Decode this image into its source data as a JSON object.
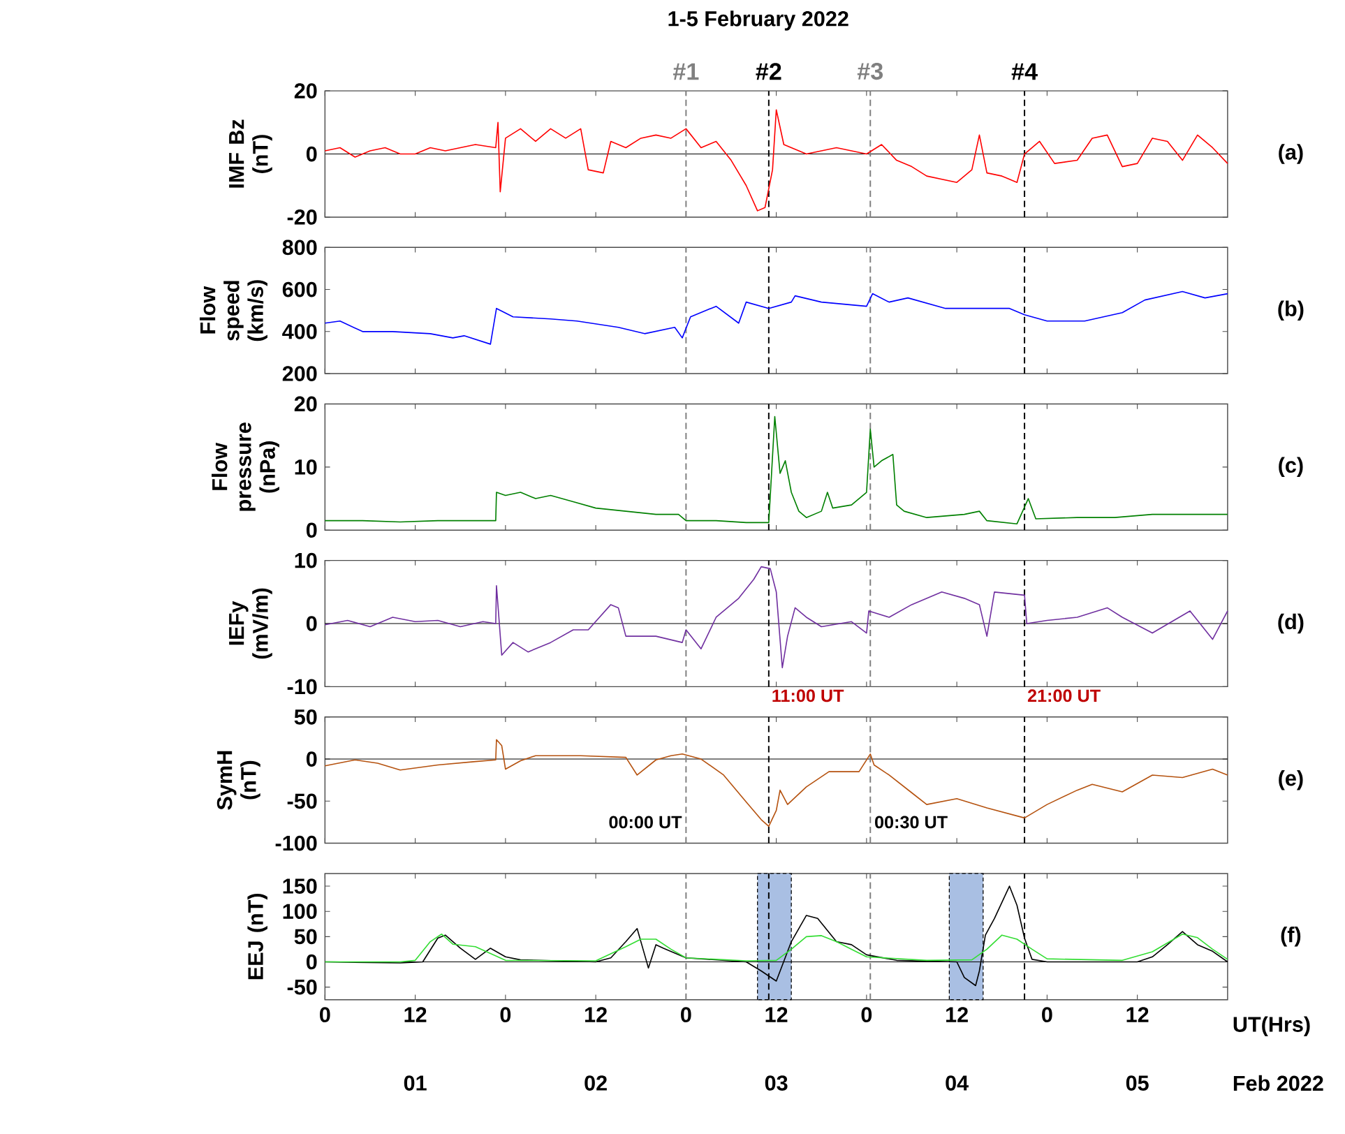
{
  "chart_data": [
    {
      "type": "line",
      "title": "1-5 February 2022",
      "ylabel": "IMF Bz (nT)",
      "xlim": [
        "2022-02-01T00:00",
        "2022-02-06T00:00"
      ],
      "ylim": [
        -20,
        20
      ],
      "yticks": [
        -20,
        0,
        20
      ],
      "xticks": [
        {
          "value": "2022-02-01T00:00",
          "label": null
        },
        {
          "value": "2022-02-01T12:00",
          "label": null
        },
        {
          "value": "2022-02-02T00:00",
          "label": null
        },
        {
          "value": "2022-02-02T12:00",
          "label": null
        },
        {
          "value": "2022-02-03T00:00",
          "label": null
        },
        {
          "value": "2022-02-03T12:00",
          "label": null
        },
        {
          "value": "2022-02-04T00:00",
          "label": null
        },
        {
          "value": "2022-02-04T12:00",
          "label": null
        },
        {
          "value": "2022-02-05T00:00",
          "label": null
        },
        {
          "value": "2022-02-05T12:00",
          "label": null
        }
      ],
      "tick_labels": "y",
      "series": [
        {
          "color": "#ff0000",
          "x": [
            "2022-02-01T00:00",
            "2022-02-01T02:00",
            "2022-02-01T04:00",
            "2022-02-01T06:00",
            "2022-02-01T08:00",
            "2022-02-01T10:00",
            "2022-02-01T12:00",
            "2022-02-01T14:00",
            "2022-02-01T16:00",
            "2022-02-01T18:00",
            "2022-02-01T20:00",
            "2022-02-01T22:42",
            "2022-02-01T23:00",
            "2022-02-01T23:18",
            "2022-02-02T00:00",
            "2022-02-02T02:00",
            "2022-02-02T04:00",
            "2022-02-02T06:00",
            "2022-02-02T08:00",
            "2022-02-02T10:00",
            "2022-02-02T11:00",
            "2022-02-02T13:00",
            "2022-02-02T14:00",
            "2022-02-02T16:00",
            "2022-02-02T18:00",
            "2022-02-02T20:00",
            "2022-02-02T22:00",
            "2022-02-03T00:00",
            "2022-02-03T02:00",
            "2022-02-03T04:00",
            "2022-02-03T06:00",
            "2022-02-03T08:00",
            "2022-02-03T09:30",
            "2022-02-03T10:30",
            "2022-02-03T11:30",
            "2022-02-03T12:00",
            "2022-02-03T13:00",
            "2022-02-03T16:00",
            "2022-02-03T20:00",
            "2022-02-04T00:00",
            "2022-02-04T02:00",
            "2022-02-04T04:00",
            "2022-02-04T06:00",
            "2022-02-04T08:00",
            "2022-02-04T10:00",
            "2022-02-04T12:00",
            "2022-02-04T14:00",
            "2022-02-04T15:00",
            "2022-02-04T16:00",
            "2022-02-04T18:00",
            "2022-02-04T20:00",
            "2022-02-04T21:00",
            "2022-02-04T23:00",
            "2022-02-05T01:00",
            "2022-02-05T04:00",
            "2022-02-05T06:00",
            "2022-02-05T08:00",
            "2022-02-05T10:00",
            "2022-02-05T12:00",
            "2022-02-05T14:00",
            "2022-02-05T16:00",
            "2022-02-05T18:00",
            "2022-02-05T20:00",
            "2022-02-05T22:00",
            "2022-02-06T00:00"
          ],
          "values": [
            1,
            2,
            -1,
            1,
            2,
            0,
            0,
            2,
            1,
            2,
            3,
            2,
            10,
            -12,
            5,
            8,
            4,
            8,
            5,
            8,
            -5,
            -6,
            4,
            2,
            5,
            6,
            5,
            8,
            2,
            4,
            -2,
            -10,
            -18,
            -17,
            -5,
            14,
            3,
            0,
            2,
            0,
            3,
            -2,
            -4,
            -7,
            -8,
            -9,
            -5,
            6,
            -6,
            -7,
            -9,
            0,
            4,
            -3,
            -2,
            5,
            6,
            -4,
            -3,
            5,
            4,
            -2,
            6,
            2,
            -3
          ]
        }
      ],
      "ref_lines": [
        {
          "axis": "y",
          "value": 0,
          "color": "#000000",
          "line_style": "solid"
        },
        {
          "axis": "x",
          "value": "2022-02-03T00:00",
          "label": "#1",
          "color": "#808080",
          "line_style": "dashed"
        },
        {
          "axis": "x",
          "value": "2022-02-03T11:00",
          "label": "#2",
          "color": "#000000",
          "line_style": "dashed"
        },
        {
          "axis": "x",
          "value": "2022-02-04T00:30",
          "label": "#3",
          "color": "#808080",
          "line_style": "dashed"
        },
        {
          "axis": "x",
          "value": "2022-02-04T21:00",
          "label": "#4",
          "color": "#000000",
          "line_style": "dashed"
        }
      ],
      "annotations": [
        "(a)"
      ]
    },
    {
      "type": "line",
      "ylabel": "Flow speed (km/s)",
      "xlim": [
        "2022-02-01T00:00",
        "2022-02-06T00:00"
      ],
      "ylim": [
        200,
        800
      ],
      "yticks": [
        200,
        400,
        600,
        800
      ],
      "xticks": [
        {
          "value": "2022-02-01T00:00",
          "label": null
        },
        {
          "value": "2022-02-01T12:00",
          "label": null
        },
        {
          "value": "2022-02-02T00:00",
          "label": null
        },
        {
          "value": "2022-02-02T12:00",
          "label": null
        },
        {
          "value": "2022-02-03T00:00",
          "label": null
        },
        {
          "value": "2022-02-03T12:00",
          "label": null
        },
        {
          "value": "2022-02-04T00:00",
          "label": null
        },
        {
          "value": "2022-02-04T12:00",
          "label": null
        },
        {
          "value": "2022-02-05T00:00",
          "label": null
        },
        {
          "value": "2022-02-05T12:00",
          "label": null
        }
      ],
      "tick_labels": "y",
      "series": [
        {
          "color": "#0000ff",
          "x": [
            "2022-02-01T00:00",
            "2022-02-01T02:00",
            "2022-02-01T05:00",
            "2022-02-01T09:00",
            "2022-02-01T14:00",
            "2022-02-01T17:00",
            "2022-02-01T18:30",
            "2022-02-01T22:00",
            "2022-02-01T22:48",
            "2022-02-02T01:00",
            "2022-02-02T06:00",
            "2022-02-02T09:30",
            "2022-02-02T15:00",
            "2022-02-02T18:30",
            "2022-02-02T22:30",
            "2022-02-02T23:30",
            "2022-02-03T00:36",
            "2022-02-03T04:00",
            "2022-02-03T07:00",
            "2022-02-03T08:00",
            "2022-02-03T11:00",
            "2022-02-03T14:00",
            "2022-02-03T14:30",
            "2022-02-03T18:00",
            "2022-02-04T00:00",
            "2022-02-04T00:48",
            "2022-02-04T03:00",
            "2022-02-04T05:30",
            "2022-02-04T10:30",
            "2022-02-04T14:30",
            "2022-02-04T19:00",
            "2022-02-04T21:00",
            "2022-02-05T00:00",
            "2022-02-05T05:00",
            "2022-02-05T10:00",
            "2022-02-05T13:00",
            "2022-02-05T18:00",
            "2022-02-05T21:00",
            "2022-02-06T00:00"
          ],
          "values": [
            440,
            450,
            400,
            400,
            390,
            370,
            380,
            340,
            510,
            470,
            460,
            450,
            420,
            390,
            420,
            370,
            470,
            520,
            440,
            540,
            510,
            540,
            570,
            540,
            520,
            580,
            540,
            560,
            510,
            510,
            510,
            480,
            450,
            450,
            490,
            550,
            590,
            560,
            580
          ]
        }
      ],
      "ref_lines": [
        {
          "axis": "x",
          "value": "2022-02-03T00:00",
          "color": "#808080",
          "line_style": "dashed"
        },
        {
          "axis": "x",
          "value": "2022-02-03T11:00",
          "color": "#000000",
          "line_style": "dashed"
        },
        {
          "axis": "x",
          "value": "2022-02-04T00:30",
          "color": "#808080",
          "line_style": "dashed"
        },
        {
          "axis": "x",
          "value": "2022-02-04T21:00",
          "color": "#000000",
          "line_style": "dashed"
        }
      ],
      "annotations": [
        "(b)"
      ]
    },
    {
      "type": "line",
      "ylabel": "Flow pressure (nPa)",
      "xlim": [
        "2022-02-01T00:00",
        "2022-02-06T00:00"
      ],
      "ylim": [
        0,
        20
      ],
      "yticks": [
        0,
        10,
        20
      ],
      "xticks": [
        {
          "value": "2022-02-01T00:00",
          "label": null
        },
        {
          "value": "2022-02-01T12:00",
          "label": null
        },
        {
          "value": "2022-02-02T00:00",
          "label": null
        },
        {
          "value": "2022-02-02T12:00",
          "label": null
        },
        {
          "value": "2022-02-03T00:00",
          "label": null
        },
        {
          "value": "2022-02-03T12:00",
          "label": null
        },
        {
          "value": "2022-02-04T00:00",
          "label": null
        },
        {
          "value": "2022-02-04T12:00",
          "label": null
        },
        {
          "value": "2022-02-05T00:00",
          "label": null
        },
        {
          "value": "2022-02-05T12:00",
          "label": null
        }
      ],
      "tick_labels": "y",
      "series": [
        {
          "color": "#008000",
          "x": [
            "2022-02-01T00:00",
            "2022-02-01T05:00",
            "2022-02-01T10:00",
            "2022-02-01T15:00",
            "2022-02-01T20:00",
            "2022-02-01T22:42",
            "2022-02-01T22:48",
            "2022-02-02T00:00",
            "2022-02-02T02:00",
            "2022-02-02T04:00",
            "2022-02-02T06:00",
            "2022-02-02T09:00",
            "2022-02-02T12:00",
            "2022-02-02T16:00",
            "2022-02-02T20:00",
            "2022-02-02T23:00",
            "2022-02-03T00:00",
            "2022-02-03T04:00",
            "2022-02-03T08:00",
            "2022-02-03T11:00",
            "2022-02-03T11:48",
            "2022-02-03T12:30",
            "2022-02-03T13:12",
            "2022-02-03T14:00",
            "2022-02-03T15:00",
            "2022-02-03T16:00",
            "2022-02-03T18:00",
            "2022-02-03T18:48",
            "2022-02-03T19:30",
            "2022-02-03T22:00",
            "2022-02-04T00:00",
            "2022-02-04T00:30",
            "2022-02-04T01:00",
            "2022-02-04T02:00",
            "2022-02-04T03:30",
            "2022-02-04T04:00",
            "2022-02-04T05:00",
            "2022-02-04T08:00",
            "2022-02-04T13:00",
            "2022-02-04T15:00",
            "2022-02-04T16:00",
            "2022-02-04T20:00",
            "2022-02-04T21:30",
            "2022-02-04T22:30",
            "2022-02-05T04:00",
            "2022-02-05T09:00",
            "2022-02-05T14:00",
            "2022-02-05T19:00",
            "2022-02-06T00:00"
          ],
          "values": [
            1.5,
            1.5,
            1.3,
            1.5,
            1.5,
            1.5,
            6,
            5.5,
            6,
            5,
            5.5,
            4.5,
            3.5,
            3,
            2.5,
            2.5,
            1.5,
            1.5,
            1.2,
            1.2,
            18,
            9,
            11,
            6,
            3,
            2,
            3,
            6,
            3.5,
            4,
            6,
            16,
            10,
            11,
            12,
            4,
            3,
            2,
            2.5,
            3,
            1.5,
            1,
            5,
            1.8,
            2,
            2,
            2.5,
            2.5,
            2.5
          ]
        }
      ],
      "ref_lines": [
        {
          "axis": "x",
          "value": "2022-02-03T00:00",
          "color": "#808080",
          "line_style": "dashed"
        },
        {
          "axis": "x",
          "value": "2022-02-03T11:00",
          "color": "#000000",
          "line_style": "dashed"
        },
        {
          "axis": "x",
          "value": "2022-02-04T00:30",
          "color": "#808080",
          "line_style": "dashed"
        },
        {
          "axis": "x",
          "value": "2022-02-04T21:00",
          "color": "#000000",
          "line_style": "dashed"
        }
      ],
      "annotations": [
        "(c)"
      ]
    },
    {
      "type": "line",
      "ylabel": "IEFy (mV/m)",
      "xlim": [
        "2022-02-01T00:00",
        "2022-02-06T00:00"
      ],
      "ylim": [
        -10,
        10
      ],
      "yticks": [
        -10,
        0,
        10
      ],
      "xticks": [
        {
          "value": "2022-02-01T00:00",
          "label": null
        },
        {
          "value": "2022-02-01T12:00",
          "label": null
        },
        {
          "value": "2022-02-02T00:00",
          "label": null
        },
        {
          "value": "2022-02-02T12:00",
          "label": null
        },
        {
          "value": "2022-02-03T00:00",
          "label": null
        },
        {
          "value": "2022-02-03T12:00",
          "label": null
        },
        {
          "value": "2022-02-04T00:00",
          "label": null
        },
        {
          "value": "2022-02-04T12:00",
          "label": null
        },
        {
          "value": "2022-02-05T00:00",
          "label": null
        },
        {
          "value": "2022-02-05T12:00",
          "label": null
        }
      ],
      "tick_labels": "y",
      "series": [
        {
          "color": "#7030a0",
          "x": [
            "2022-02-01T00:00",
            "2022-02-01T03:00",
            "2022-02-01T06:00",
            "2022-02-01T09:00",
            "2022-02-01T12:00",
            "2022-02-01T15:00",
            "2022-02-01T18:00",
            "2022-02-01T21:00",
            "2022-02-01T22:42",
            "2022-02-01T22:48",
            "2022-02-01T23:30",
            "2022-02-02T01:00",
            "2022-02-02T03:00",
            "2022-02-02T06:00",
            "2022-02-02T09:00",
            "2022-02-02T11:00",
            "2022-02-02T14:00",
            "2022-02-02T15:00",
            "2022-02-02T16:00",
            "2022-02-02T20:00",
            "2022-02-02T23:30",
            "2022-02-03T00:00",
            "2022-02-03T02:00",
            "2022-02-03T04:00",
            "2022-02-03T07:00",
            "2022-02-03T09:00",
            "2022-02-03T10:00",
            "2022-02-03T11:12",
            "2022-02-03T12:00",
            "2022-02-03T12:48",
            "2022-02-03T13:30",
            "2022-02-03T14:30",
            "2022-02-03T16:00",
            "2022-02-03T18:00",
            "2022-02-03T22:00",
            "2022-02-04T00:00",
            "2022-02-04T00:18",
            "2022-02-04T03:00",
            "2022-02-04T06:00",
            "2022-02-04T10:00",
            "2022-02-04T13:00",
            "2022-02-04T15:00",
            "2022-02-04T16:00",
            "2022-02-04T17:00",
            "2022-02-04T21:00",
            "2022-02-04T21:18",
            "2022-02-05T00:00",
            "2022-02-05T04:00",
            "2022-02-05T08:00",
            "2022-02-05T10:00",
            "2022-02-05T14:00",
            "2022-02-05T19:00",
            "2022-02-05T22:00",
            "2022-02-06T00:00"
          ],
          "values": [
            -0.2,
            0.5,
            -0.5,
            1,
            0.3,
            0.5,
            -0.5,
            0.3,
            0,
            6,
            -5,
            -3,
            -4.5,
            -3,
            -1,
            -1,
            3,
            2.5,
            -2,
            -2,
            -3,
            -1,
            -4,
            1,
            4,
            7,
            9,
            8.7,
            5,
            -7,
            -2,
            2.5,
            1,
            -0.5,
            0.3,
            -1.5,
            2,
            1,
            3,
            5,
            4,
            3,
            -2,
            5,
            4.5,
            0,
            0.5,
            1,
            2.5,
            1,
            -1.5,
            2,
            -2.5,
            2
          ]
        }
      ],
      "ref_lines": [
        {
          "axis": "y",
          "value": 0,
          "color": "#000000",
          "line_style": "solid"
        },
        {
          "axis": "x",
          "value": "2022-02-03T00:00",
          "color": "#808080",
          "line_style": "dashed"
        },
        {
          "axis": "x",
          "value": "2022-02-03T11:00",
          "color": "#000000",
          "line_style": "dashed"
        },
        {
          "axis": "x",
          "value": "2022-02-04T00:30",
          "color": "#808080",
          "line_style": "dashed"
        },
        {
          "axis": "x",
          "value": "2022-02-04T21:00",
          "color": "#000000",
          "line_style": "dashed"
        }
      ],
      "annotations": [
        "(d)",
        {
          "text": "11:00 UT",
          "x": "2022-02-03T11:00",
          "y": -10
        },
        {
          "text": "21:00 UT",
          "x": "2022-02-04T21:00",
          "y": -10
        }
      ]
    },
    {
      "type": "line",
      "ylabel": "SymH (nT)",
      "xlim": [
        "2022-02-01T00:00",
        "2022-02-06T00:00"
      ],
      "ylim": [
        -100,
        50
      ],
      "yticks": [
        -100,
        -50,
        0,
        50
      ],
      "xticks": [
        {
          "value": "2022-02-01T00:00",
          "label": null
        },
        {
          "value": "2022-02-01T12:00",
          "label": null
        },
        {
          "value": "2022-02-02T00:00",
          "label": null
        },
        {
          "value": "2022-02-02T12:00",
          "label": null
        },
        {
          "value": "2022-02-03T00:00",
          "label": null
        },
        {
          "value": "2022-02-03T12:00",
          "label": null
        },
        {
          "value": "2022-02-04T00:00",
          "label": null
        },
        {
          "value": "2022-02-04T12:00",
          "label": null
        },
        {
          "value": "2022-02-05T00:00",
          "label": null
        },
        {
          "value": "2022-02-05T12:00",
          "label": null
        }
      ],
      "tick_labels": "y",
      "series": [
        {
          "color": "#b5520f",
          "x": [
            "2022-02-01T00:00",
            "2022-02-01T04:00",
            "2022-02-01T07:00",
            "2022-02-01T10:00",
            "2022-02-01T15:00",
            "2022-02-01T20:00",
            "2022-02-01T22:42",
            "2022-02-01T22:48",
            "2022-02-01T23:30",
            "2022-02-02T00:00",
            "2022-02-02T02:00",
            "2022-02-02T04:00",
            "2022-02-02T10:00",
            "2022-02-02T16:00",
            "2022-02-02T17:30",
            "2022-02-02T20:00",
            "2022-02-02T22:00",
            "2022-02-02T23:30",
            "2022-02-03T02:00",
            "2022-02-03T05:00",
            "2022-02-03T08:00",
            "2022-02-03T10:00",
            "2022-02-03T11:00",
            "2022-02-03T12:00",
            "2022-02-03T12:30",
            "2022-02-03T13:30",
            "2022-02-03T16:00",
            "2022-02-03T19:00",
            "2022-02-03T23:00",
            "2022-02-04T00:30",
            "2022-02-04T01:00",
            "2022-02-04T03:00",
            "2022-02-04T06:00",
            "2022-02-04T08:00",
            "2022-02-04T12:00",
            "2022-02-04T16:00",
            "2022-02-04T21:00",
            "2022-02-05T00:00",
            "2022-02-05T04:00",
            "2022-02-05T06:00",
            "2022-02-05T10:00",
            "2022-02-05T14:00",
            "2022-02-05T18:00",
            "2022-02-05T22:00",
            "2022-02-06T00:00"
          ],
          "values": [
            -8,
            -1,
            -5,
            -13,
            -7,
            -3,
            -1,
            23,
            16,
            -12,
            -2,
            4,
            4,
            2,
            -19,
            -1,
            4,
            6,
            0,
            -19,
            -51,
            -72,
            -80,
            -61,
            -37,
            -54,
            -33,
            -15,
            -15,
            6,
            -7,
            -19,
            -40,
            -54,
            -47,
            -58,
            -70,
            -54,
            -37,
            -30,
            -39,
            -19,
            -22,
            -12,
            -19
          ]
        }
      ],
      "ref_lines": [
        {
          "axis": "y",
          "value": 0,
          "color": "#000000",
          "line_style": "solid"
        },
        {
          "axis": "x",
          "value": "2022-02-03T00:00",
          "color": "#808080",
          "line_style": "dashed"
        },
        {
          "axis": "x",
          "value": "2022-02-03T11:00",
          "color": "#000000",
          "line_style": "dashed"
        },
        {
          "axis": "x",
          "value": "2022-02-04T00:30",
          "color": "#808080",
          "line_style": "dashed"
        },
        {
          "axis": "x",
          "value": "2022-02-04T21:00",
          "color": "#000000",
          "line_style": "dashed"
        }
      ],
      "annotations": [
        "(e)",
        {
          "text": "00:00 UT",
          "x": "2022-02-03T00:00",
          "y": -75
        },
        {
          "text": "00:30 UT",
          "x": "2022-02-04T00:30",
          "y": -75
        }
      ]
    },
    {
      "type": "line",
      "ylabel": "EEJ (nT)",
      "xlabel": "UT(Hrs)",
      "xlim": [
        "2022-02-01T00:00",
        "2022-02-06T00:00"
      ],
      "ylim": [
        -75,
        175
      ],
      "yticks": [
        -50,
        0,
        50,
        100,
        150
      ],
      "xticks": [
        {
          "value": "2022-02-01T00:00",
          "label": "0"
        },
        {
          "value": "2022-02-01T12:00",
          "label": "12"
        },
        {
          "value": "2022-02-02T00:00",
          "label": "0"
        },
        {
          "value": "2022-02-02T12:00",
          "label": "12"
        },
        {
          "value": "2022-02-03T00:00",
          "label": "0"
        },
        {
          "value": "2022-02-03T12:00",
          "label": "12"
        },
        {
          "value": "2022-02-04T00:00",
          "label": "0"
        },
        {
          "value": "2022-02-04T12:00",
          "label": "12"
        },
        {
          "value": "2022-02-05T00:00",
          "label": "0"
        },
        {
          "value": "2022-02-05T12:00",
          "label": "12"
        }
      ],
      "series": [
        {
          "color": "#000000",
          "x": [
            "2022-02-01T00:00",
            "2022-02-01T10:00",
            "2022-02-01T13:00",
            "2022-02-01T15:00",
            "2022-02-01T16:00",
            "2022-02-01T18:00",
            "2022-02-01T20:00",
            "2022-02-01T22:00",
            "2022-02-02T00:00",
            "2022-02-02T02:00",
            "2022-02-02T12:00",
            "2022-02-02T14:00",
            "2022-02-02T16:00",
            "2022-02-02T17:30",
            "2022-02-02T18:30",
            "2022-02-02T19:00",
            "2022-02-02T20:00",
            "2022-02-02T21:00",
            "2022-02-03T00:00",
            "2022-02-03T08:00",
            "2022-02-03T10:00",
            "2022-02-03T12:00",
            "2022-02-03T13:00",
            "2022-02-03T14:00",
            "2022-02-03T16:00",
            "2022-02-03T17:30",
            "2022-02-03T20:00",
            "2022-02-03T22:00",
            "2022-02-04T00:00",
            "2022-02-04T04:00",
            "2022-02-04T12:00",
            "2022-02-04T13:00",
            "2022-02-04T14:30",
            "2022-02-04T15:00",
            "2022-02-04T15:48",
            "2022-02-04T17:00",
            "2022-02-04T19:00",
            "2022-02-04T20:00",
            "2022-02-04T21:00",
            "2022-02-04T22:00",
            "2022-02-05T00:00",
            "2022-02-05T12:00",
            "2022-02-05T14:00",
            "2022-02-05T16:00",
            "2022-02-05T18:00",
            "2022-02-05T20:00",
            "2022-02-05T22:00",
            "2022-02-06T00:00"
          ],
          "values": [
            0,
            -2,
            0,
            47,
            53,
            27,
            5,
            27,
            10,
            4,
            0,
            8,
            40,
            66,
            14,
            -12,
            34,
            27,
            8,
            0,
            -18,
            -38,
            1,
            40,
            92,
            86,
            40,
            34,
            14,
            3,
            0,
            -31,
            -47,
            -18,
            53,
            86,
            150,
            112,
            47,
            5,
            0,
            0,
            10,
            34,
            60,
            34,
            21,
            0
          ]
        },
        {
          "color": "#33dd33",
          "x": [
            "2022-02-01T00:00",
            "2022-02-01T10:00",
            "2022-02-01T12:00",
            "2022-02-01T14:00",
            "2022-02-01T15:30",
            "2022-02-01T17:00",
            "2022-02-01T20:00",
            "2022-02-02T00:00",
            "2022-02-02T12:00",
            "2022-02-02T16:00",
            "2022-02-02T18:00",
            "2022-02-02T20:00",
            "2022-02-02T22:00",
            "2022-02-03T00:00",
            "2022-02-03T08:00",
            "2022-02-03T12:00",
            "2022-02-03T14:00",
            "2022-02-03T16:00",
            "2022-02-03T18:00",
            "2022-02-03T20:00",
            "2022-02-03T22:00",
            "2022-02-04T00:00",
            "2022-02-04T08:00",
            "2022-02-04T14:00",
            "2022-02-04T16:00",
            "2022-02-04T18:00",
            "2022-02-04T20:00",
            "2022-02-04T22:00",
            "2022-02-05T00:00",
            "2022-02-05T10:00",
            "2022-02-05T14:00",
            "2022-02-05T18:00",
            "2022-02-05T20:00",
            "2022-02-05T22:00",
            "2022-02-06T00:00"
          ],
          "values": [
            0,
            0,
            3,
            40,
            55,
            35,
            30,
            3,
            2,
            30,
            45,
            45,
            25,
            8,
            2,
            3,
            25,
            50,
            52,
            40,
            25,
            10,
            3,
            4,
            25,
            53,
            45,
            25,
            6,
            3,
            20,
            55,
            48,
            25,
            5
          ]
        }
      ],
      "ref_lines": [
        {
          "axis": "y",
          "value": 0,
          "color": "#000000",
          "line_style": "solid"
        },
        {
          "axis": "x",
          "value": "2022-02-03T00:00",
          "color": "#808080",
          "line_style": "dashed"
        },
        {
          "axis": "x",
          "value": "2022-02-03T11:00",
          "color": "#000000",
          "line_style": "dashed"
        },
        {
          "axis": "x",
          "value": "2022-02-04T00:30",
          "color": "#808080",
          "line_style": "dashed"
        },
        {
          "axis": "x",
          "value": "2022-02-04T21:00",
          "color": "#000000",
          "line_style": "dashed"
        }
      ],
      "bands": [
        {
          "axis": "x",
          "from": "2022-02-03T09:30",
          "to": "2022-02-03T14:00",
          "color": "#a9bfe3"
        },
        {
          "axis": "x",
          "from": "2022-02-04T11:00",
          "to": "2022-02-04T15:30",
          "color": "#a9bfe3"
        }
      ],
      "annotations": [
        "(f)",
        "01",
        "02",
        "03",
        "04",
        "05",
        "Feb 2022"
      ]
    }
  ]
}
